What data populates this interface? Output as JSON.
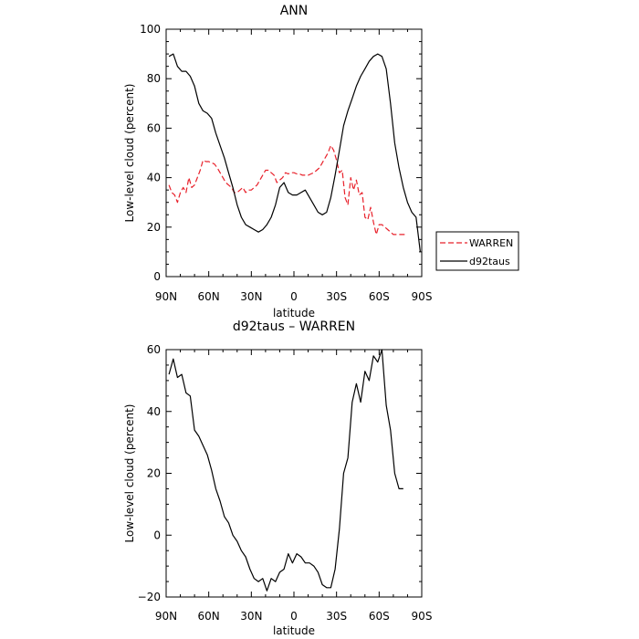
{
  "chart_data": [
    {
      "type": "line",
      "title": "ANN",
      "xlabel": "latitude",
      "ylabel": "Low-level cloud (percent)",
      "xlim": [
        90,
        -90
      ],
      "ylim": [
        0,
        100
      ],
      "xticks": [
        90,
        60,
        30,
        0,
        -30,
        -60,
        -90
      ],
      "xticklabels": [
        "90N",
        "60N",
        "30N",
        "0",
        "30S",
        "60S",
        "90S"
      ],
      "yticks": [
        0,
        20,
        40,
        60,
        80,
        100
      ],
      "yticklabels": [
        "0",
        "20",
        "40",
        "60",
        "80",
        "100"
      ],
      "legend": {
        "position": "right",
        "entries": [
          "WARREN",
          "d92taus"
        ]
      },
      "series": [
        {
          "name": "WARREN",
          "color": "#e8212b",
          "dash": "dashed",
          "x": [
            88,
            86,
            84,
            82,
            80,
            78,
            76,
            74,
            72,
            70,
            68,
            66,
            64,
            62,
            60,
            58,
            56,
            54,
            52,
            50,
            48,
            46,
            44,
            42,
            40,
            38,
            36,
            34,
            32,
            30,
            28,
            26,
            24,
            22,
            20,
            18,
            16,
            14,
            12,
            10,
            8,
            6,
            4,
            2,
            0,
            -2,
            -4,
            -6,
            -8,
            -10,
            -12,
            -14,
            -16,
            -18,
            -20,
            -22,
            -24,
            -26,
            -28,
            -30,
            -32,
            -34,
            -36,
            -38,
            -40,
            -42,
            -44,
            -46,
            -48,
            -50,
            -52,
            -54,
            -56,
            -58,
            -60,
            -62,
            -64,
            -66,
            -68,
            -70,
            -72,
            -74,
            -76,
            -78
          ],
          "y": [
            37,
            34,
            33,
            30,
            34,
            36,
            34,
            40,
            36,
            37,
            40,
            43,
            47,
            46.5,
            46.5,
            46,
            45.5,
            44,
            42,
            40,
            38,
            37,
            36,
            34,
            34,
            35,
            36,
            34,
            35,
            35,
            36,
            37,
            39,
            41,
            43,
            43,
            42,
            41,
            38,
            39,
            40,
            42,
            41.5,
            42,
            42,
            41.5,
            41.5,
            41,
            41,
            41,
            41.5,
            42,
            43,
            44,
            46,
            48,
            50,
            53,
            51,
            47,
            42,
            43,
            32,
            29,
            40,
            35,
            39,
            33,
            34,
            24,
            23,
            28,
            22,
            17,
            21,
            21,
            20,
            19,
            18,
            17,
            17,
            17,
            17,
            17
          ]
        },
        {
          "name": "d92taus",
          "color": "#000000",
          "dash": "solid",
          "x": [
            88,
            85,
            82,
            79,
            76,
            73,
            70,
            67,
            64,
            61,
            58,
            55,
            52,
            49,
            46,
            43,
            40,
            37,
            34,
            31,
            28,
            25,
            22,
            19,
            16,
            13,
            10,
            7,
            4,
            1,
            -2,
            -5,
            -8,
            -11,
            -14,
            -17,
            -20,
            -23,
            -26,
            -29,
            -32,
            -35,
            -38,
            -41,
            -44,
            -47,
            -50,
            -53,
            -56,
            -59,
            -62,
            -65,
            -68,
            -71,
            -74,
            -77,
            -80,
            -83,
            -86,
            -89
          ],
          "y": [
            89,
            90,
            85,
            83,
            83,
            81,
            77,
            70,
            67,
            66,
            64,
            58,
            53,
            48,
            42,
            36,
            29,
            24,
            21,
            20,
            19,
            18,
            19,
            21,
            24,
            29,
            36,
            38,
            34,
            33,
            33,
            34,
            35,
            32,
            29,
            26,
            25,
            26,
            32,
            41,
            51,
            61,
            67,
            72,
            77,
            81,
            84,
            87,
            89,
            90,
            89,
            84,
            70,
            54,
            44,
            36,
            30,
            26,
            24,
            10
          ]
        }
      ]
    },
    {
      "type": "line",
      "title": "d92taus – WARREN",
      "xlabel": "latitude",
      "ylabel": "Low-level cloud (percent)",
      "xlim": [
        90,
        -90
      ],
      "ylim": [
        -20,
        60
      ],
      "xticks": [
        90,
        60,
        30,
        0,
        -30,
        -60,
        -90
      ],
      "xticklabels": [
        "90N",
        "60N",
        "30N",
        "0",
        "30S",
        "60S",
        "90S"
      ],
      "yticks": [
        -20,
        0,
        20,
        40,
        60
      ],
      "yticklabels": [
        "−20",
        "0",
        "20",
        "40",
        "60"
      ],
      "series": [
        {
          "color": "#000000",
          "dash": "solid",
          "x": [
            88,
            85,
            82,
            79,
            76,
            73,
            70,
            67,
            64,
            61,
            58,
            55,
            52,
            49,
            46,
            43,
            40,
            37,
            34,
            31,
            28,
            25,
            22,
            19,
            16,
            13,
            10,
            7,
            4,
            1,
            -2,
            -5,
            -8,
            -11,
            -14,
            -17,
            -20,
            -23,
            -26,
            -29,
            -32,
            -35,
            -38,
            -41,
            -44,
            -47,
            -50,
            -53,
            -56,
            -59,
            -62,
            -65,
            -68,
            -71,
            -74,
            -77
          ],
          "y": [
            52,
            57,
            51,
            52,
            46,
            45,
            34,
            32,
            29,
            26,
            21,
            15,
            11,
            6,
            4,
            0,
            -2,
            -5,
            -7,
            -11,
            -14,
            -15,
            -14,
            -18,
            -14,
            -15,
            -12,
            -11,
            -6,
            -9,
            -6,
            -7,
            -9,
            -9,
            -10,
            -12,
            -16,
            -17,
            -17,
            -11,
            2,
            20,
            25,
            43,
            49,
            43,
            53,
            50,
            58,
            56,
            60,
            42,
            34,
            20,
            15,
            15
          ]
        }
      ]
    }
  ]
}
